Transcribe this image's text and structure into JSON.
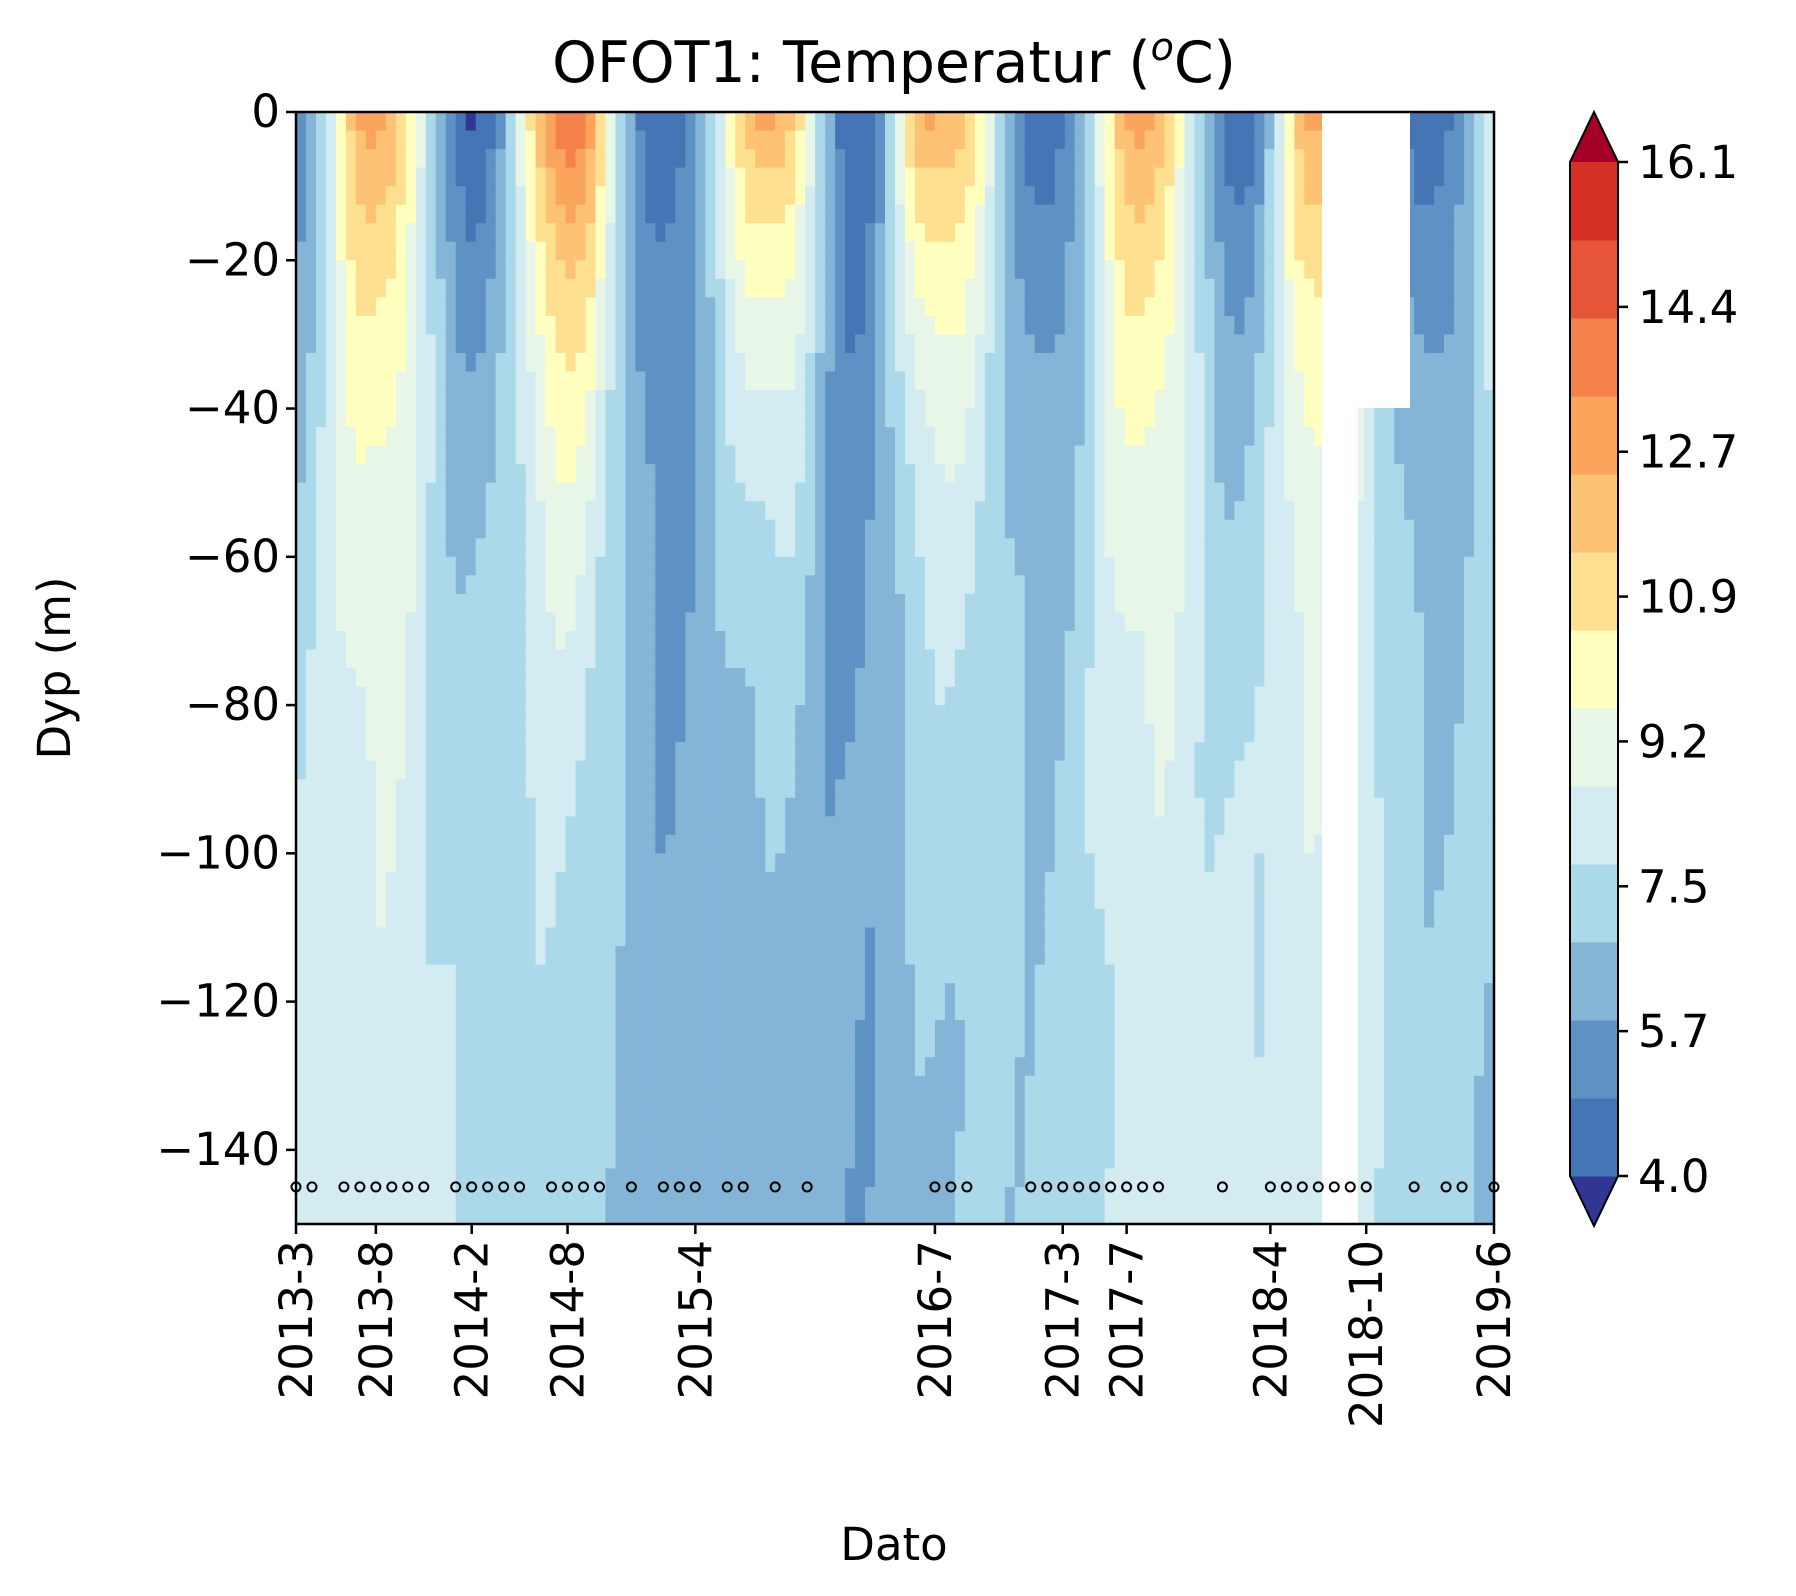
{
  "chart_data": {
    "type": "heatmap",
    "subtype": "filled-contour",
    "title_main": "OFOT1: Temperatur (",
    "title_sup": "o",
    "title_end": "C)",
    "xlabel": "Dato",
    "ylabel": "Dyp (m)",
    "x_range": [
      "2013-3",
      "2019-6"
    ],
    "ylim": [
      -150,
      0
    ],
    "x_tick_labels": [
      "2013-3",
      "2013-8",
      "2014-2",
      "2014-8",
      "2015-4",
      "2016-7",
      "2017-3",
      "2017-7",
      "2018-4",
      "2018-10",
      "2019-6"
    ],
    "y_tick_labels": [
      "0",
      "−20",
      "−40",
      "−60",
      "−80",
      "−100",
      "−120",
      "−140"
    ],
    "colorbar": {
      "vmin": 4.0,
      "vmax": 16.1,
      "tick_labels": [
        "16.1",
        "14.4",
        "12.7",
        "10.9",
        "9.2",
        "7.5",
        "5.7",
        "4.0"
      ],
      "extend": "both",
      "colors": [
        "#313695",
        "#4575b4",
        "#5e91c4",
        "#84b5d7",
        "#abd9e9",
        "#d3ecf1",
        "#e8f6e7",
        "#ffffbf",
        "#fee090",
        "#fdc274",
        "#fba45c",
        "#f4824a",
        "#e65538",
        "#d73027",
        "#a50026"
      ]
    },
    "profile_dates": [
      "2013-3",
      "2013-4",
      "2013-6",
      "2013-7",
      "2013-8",
      "2013-9",
      "2013-10",
      "2013-11",
      "2014-1",
      "2014-2",
      "2014-3",
      "2014-4",
      "2014-5",
      "2014-7",
      "2014-8",
      "2014-9",
      "2014-10",
      "2014-12",
      "2015-2",
      "2015-3",
      "2015-4",
      "2015-6",
      "2015-7",
      "2015-9",
      "2015-11",
      "2016-7",
      "2016-8",
      "2016-9",
      "2017-1",
      "2017-2",
      "2017-3",
      "2017-4",
      "2017-5",
      "2017-6",
      "2017-7",
      "2017-8",
      "2017-9",
      "2018-1",
      "2018-4",
      "2018-5",
      "2018-6",
      "2018-7",
      "2018-8",
      "2018-9",
      "2018-10",
      "2019-1",
      "2019-3",
      "2019-4",
      "2019-6"
    ],
    "profile_marker_depth": -145,
    "missing_data_range": [
      "2018-8",
      "2018-10"
    ],
    "missing_data_above_depth_range": [
      "2018-10",
      "2019-1"
    ],
    "missing_data_above_depth": -40,
    "annual_warm_layer_peaks": [
      {
        "date": "2013-8",
        "temperature": 12.7
      },
      {
        "date": "2014-8",
        "temperature": 14.4
      },
      {
        "date": "2015-9",
        "temperature": 12.7
      },
      {
        "date": "2016-7",
        "temperature": 12.7
      },
      {
        "date": "2017-8",
        "temperature": 12.7
      },
      {
        "date": "2018-7",
        "temperature": 12.7
      }
    ],
    "bottom_water_temperature_range": [
      5.7,
      8.3
    ]
  }
}
